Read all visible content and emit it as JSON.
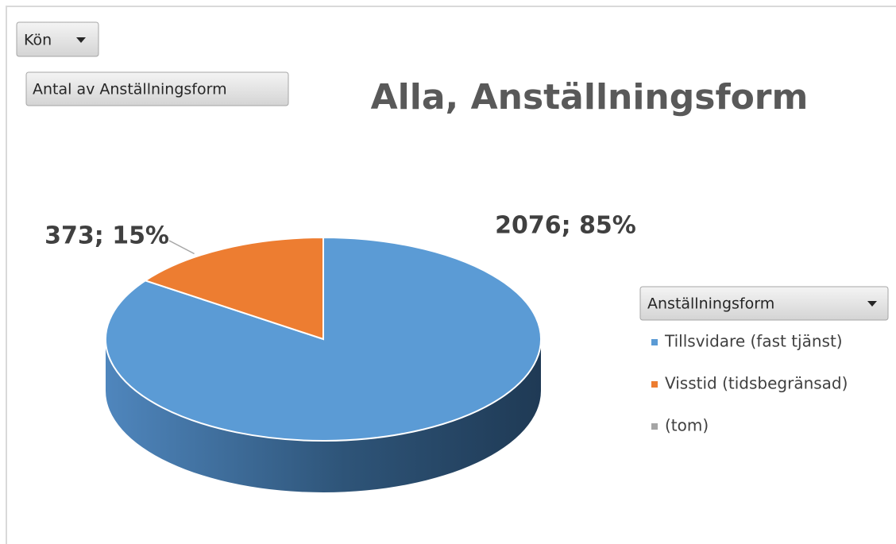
{
  "chart_data": {
    "type": "pie",
    "title": "Alla,  Anställningsform",
    "report_filter": "Kön",
    "values_field": "Antal av Anställningsform",
    "legend_title": "Anställningsform",
    "categories": [
      "Tillsvidare (fast tjänst)",
      "Visstid (tidsbegränsad)",
      "(tom)"
    ],
    "values": [
      2076,
      373,
      null
    ],
    "value_labels": [
      "2076; 85%",
      "373; 15%",
      null
    ],
    "colors": [
      "#5b9bd5",
      "#ed7d31",
      "#a5a5a5"
    ]
  }
}
